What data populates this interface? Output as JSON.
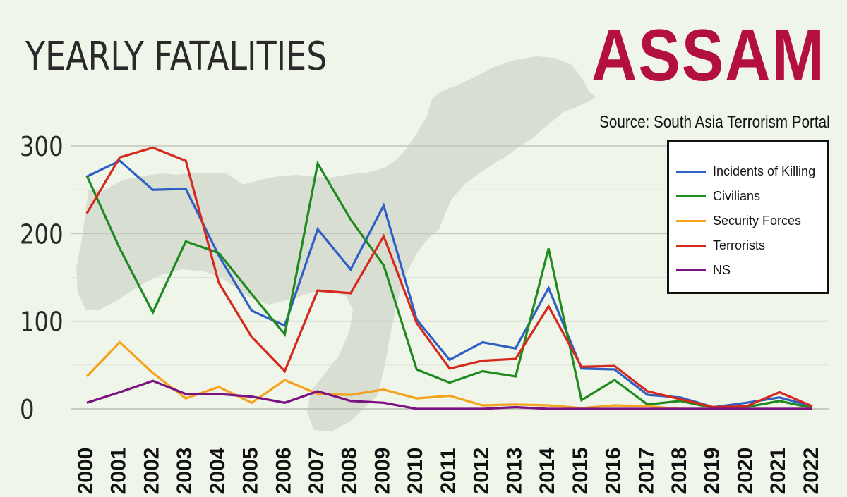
{
  "header": {
    "title": "YEARLY FATALITIES",
    "state": "ASSAM",
    "source": "Source: South Asia Terrorism Portal"
  },
  "colors": {
    "background": "#eff5e8",
    "map": "#d9ded2",
    "grid": "#c8ccc4",
    "state": "#b3103e"
  },
  "chart_data": {
    "type": "line",
    "title": "YEARLY FATALITIES",
    "xlabel": "",
    "ylabel": "",
    "ylim": [
      0,
      300
    ],
    "yticks": [
      0,
      100,
      200,
      300
    ],
    "grid": true,
    "legend_position": "top-right",
    "categories": [
      "2000",
      "2001",
      "2002",
      "2003",
      "2004",
      "2005",
      "2006",
      "2007",
      "2008",
      "2009",
      "2010",
      "2011",
      "2012",
      "2013",
      "2014",
      "2015",
      "2016",
      "2017",
      "2018",
      "2019",
      "2020",
      "2021",
      "2022"
    ],
    "series": [
      {
        "name": "Incidents of Killing",
        "color": "#2f5fc4",
        "values": [
          265,
          283,
          250,
          251,
          175,
          112,
          95,
          205,
          159,
          232,
          102,
          56,
          76,
          69,
          138,
          46,
          45,
          16,
          13,
          2,
          7,
          13,
          3
        ]
      },
      {
        "name": "Civilians",
        "color": "#1f8a1f",
        "values": [
          266,
          183,
          110,
          191,
          178,
          131,
          85,
          280,
          216,
          164,
          45,
          30,
          43,
          37,
          183,
          10,
          33,
          5,
          9,
          1,
          2,
          9,
          1
        ]
      },
      {
        "name": "Security Forces",
        "color": "#f5a21d",
        "values": [
          37,
          76,
          41,
          12,
          25,
          7,
          33,
          17,
          16,
          22,
          12,
          15,
          4,
          5,
          4,
          1,
          4,
          3,
          0,
          0,
          0,
          0,
          0
        ]
      },
      {
        "name": "Terrorists",
        "color": "#d6291d",
        "values": [
          223,
          287,
          298,
          283,
          144,
          82,
          43,
          135,
          132,
          197,
          98,
          46,
          55,
          57,
          117,
          48,
          49,
          20,
          11,
          2,
          3,
          19,
          3
        ]
      },
      {
        "name": "NS",
        "color": "#7a1282",
        "values": [
          7,
          19,
          32,
          17,
          17,
          14,
          7,
          20,
          9,
          7,
          0,
          0,
          0,
          2,
          0,
          0,
          0,
          0,
          0,
          0,
          0,
          0,
          0
        ]
      }
    ]
  }
}
